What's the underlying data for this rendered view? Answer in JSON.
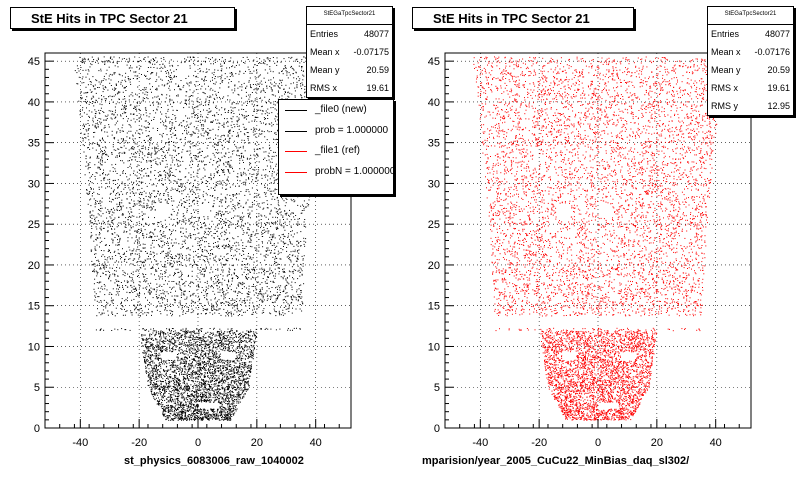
{
  "chart_data": [
    {
      "type": "scatter",
      "title": "StE Hits in TPC Sector 21",
      "xlabel": "st_physics_6083006_raw_1040002",
      "ylabel": "",
      "xlim": [
        -52,
        52
      ],
      "ylim": [
        0,
        46
      ],
      "xticks": [
        "-40",
        "-20",
        "0",
        "20",
        "40"
      ],
      "yticks": [
        "0",
        "5",
        "10",
        "15",
        "20",
        "25",
        "30",
        "35",
        "40",
        "45"
      ],
      "grid": true,
      "color": "#000000",
      "stats": {
        "header": "StEGaTpcSector21",
        "rows": [
          {
            "label": "Entries",
            "value": "48077"
          },
          {
            "label": "Mean x",
            "value": "-0.07175"
          },
          {
            "label": "Mean y",
            "value": "20.59"
          },
          {
            "label": "RMS x",
            "value": "19.61"
          }
        ]
      },
      "legend": [
        {
          "label": "_file0 (new)",
          "color": "#000000"
        },
        {
          "label": "prob = 1.000000",
          "color": "#000000"
        },
        {
          "label": "_file1 (ref)",
          "color": "#ff0000"
        },
        {
          "label": "probN = 1.000000",
          "color": "#ff0000"
        }
      ],
      "legend_placement": "top-right"
    },
    {
      "type": "scatter",
      "title": "StE Hits in TPC Sector 21",
      "xlabel": "mparision/year_2005_CuCu22_MinBias_daq_sl302/",
      "ylabel": "",
      "xlim": [
        -52,
        52
      ],
      "ylim": [
        0,
        46
      ],
      "xticks": [
        "-40",
        "-20",
        "0",
        "20",
        "40"
      ],
      "yticks": [
        "0",
        "5",
        "10",
        "15",
        "20",
        "25",
        "30",
        "35",
        "40",
        "45"
      ],
      "grid": true,
      "color": "#ff0000",
      "stats": {
        "header": "StEGaTpcSector21",
        "rows": [
          {
            "label": "Entries",
            "value": "48077"
          },
          {
            "label": "Mean x",
            "value": "-0.07176"
          },
          {
            "label": "Mean y",
            "value": "20.59"
          },
          {
            "label": "RMS x",
            "value": "19.61"
          },
          {
            "label": "RMS y",
            "value": "12.95"
          }
        ]
      }
    }
  ]
}
